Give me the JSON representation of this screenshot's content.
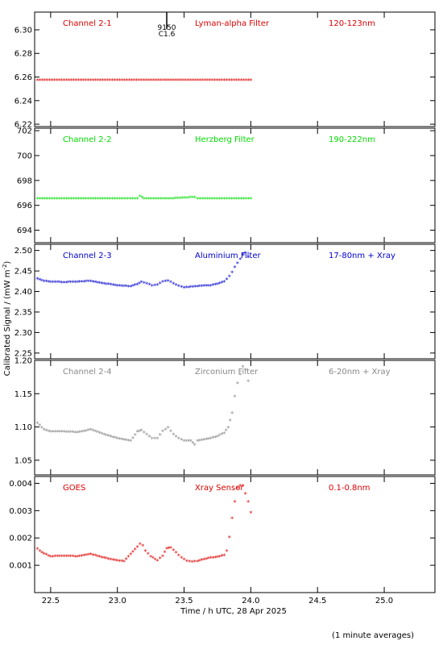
{
  "figure": {
    "ylabel_main": "Calibrated Signal / (mW m",
    "ylabel_exp": "-2",
    "ylabel_close": ")",
    "xlabel": "Time / h UTC, 28 Apr 2025",
    "footnote": "(1 minute averages)",
    "event_marker": {
      "x": 23.37,
      "label_top": "9150",
      "label_bottom": "C1.6"
    },
    "x_ticks": [
      {
        "v": 22.5,
        "label": "22.5"
      },
      {
        "v": 23.0,
        "label": "23.0"
      },
      {
        "v": 23.5,
        "label": "23.5"
      },
      {
        "v": 24.0,
        "label": "24.0"
      },
      {
        "v": 24.5,
        "label": "24.5"
      },
      {
        "v": 25.0,
        "label": "25.0"
      }
    ]
  },
  "chart_data": [
    {
      "type": "scatter",
      "channel": "Channel 2-1",
      "filter": "Lyman-alpha Filter",
      "band": "120-123nm",
      "color": "#dd0000",
      "xlim": [
        22.38,
        25.38
      ],
      "ylim": [
        6.218,
        6.315
      ],
      "yticks": [
        "6.22",
        "6.24",
        "6.26",
        "6.28",
        "6.30"
      ],
      "series": [
        {
          "x": [
            22.4,
            22.6,
            22.8,
            23.0,
            23.2,
            23.4,
            23.6,
            23.8,
            24.0
          ],
          "y": [
            6.257,
            6.257,
            6.257,
            6.257,
            6.257,
            6.257,
            6.257,
            6.257,
            6.257
          ]
        }
      ]
    },
    {
      "type": "scatter",
      "channel": "Channel 2-2",
      "filter": "Herzberg Filter",
      "band": "190-222nm",
      "color": "#00dd00",
      "xlim": [
        22.38,
        25.38
      ],
      "ylim": [
        693.0,
        702.2
      ],
      "yticks": [
        "694",
        "696",
        "698",
        "700",
        "702"
      ],
      "series": [
        {
          "x": [
            22.4,
            22.6,
            22.8,
            23.0,
            23.15,
            23.17,
            23.2,
            23.4,
            23.58,
            23.6,
            23.8,
            24.0
          ],
          "y": [
            696.5,
            696.5,
            696.5,
            696.5,
            696.5,
            696.7,
            696.5,
            696.5,
            696.6,
            696.5,
            696.5,
            696.5
          ]
        }
      ]
    },
    {
      "type": "scatter",
      "channel": "Channel 2-3",
      "filter": "Aluminium Filter",
      "band": "17-80nm + Xray",
      "color": "#0000cc",
      "xlim": [
        22.38,
        25.38
      ],
      "ylim": [
        2.236,
        2.515
      ],
      "yticks": [
        "2.25",
        "2.30",
        "2.35",
        "2.40",
        "2.45",
        "2.50"
      ],
      "series": [
        {
          "x": [
            22.4,
            22.45,
            22.5,
            22.6,
            22.7,
            22.8,
            22.9,
            23.0,
            23.1,
            23.15,
            23.18,
            23.22,
            23.26,
            23.3,
            23.34,
            23.38,
            23.42,
            23.46,
            23.5,
            23.55,
            23.6,
            23.65,
            23.7,
            23.75,
            23.8,
            23.84,
            23.86,
            23.88,
            23.9,
            23.92,
            23.94,
            23.96,
            23.98
          ],
          "y": [
            2.43,
            2.424,
            2.422,
            2.421,
            2.422,
            2.424,
            2.418,
            2.413,
            2.411,
            2.416,
            2.422,
            2.418,
            2.413,
            2.415,
            2.423,
            2.425,
            2.418,
            2.412,
            2.408,
            2.41,
            2.411,
            2.413,
            2.413,
            2.417,
            2.423,
            2.435,
            2.445,
            2.458,
            2.468,
            2.478,
            2.488,
            2.492,
            2.483
          ]
        }
      ]
    },
    {
      "type": "scatter",
      "channel": "Channel 2-4",
      "filter": "Zirconium Filter",
      "band": "6-20nm + Xray",
      "color": "#888888",
      "xlim": [
        22.38,
        25.38
      ],
      "ylim": [
        1.028,
        1.2
      ],
      "yticks": [
        "1.05",
        "1.10",
        "1.15",
        "1.20"
      ],
      "series": [
        {
          "x": [
            22.4,
            22.45,
            22.5,
            22.6,
            22.7,
            22.8,
            22.9,
            23.0,
            23.1,
            23.15,
            23.18,
            23.22,
            23.26,
            23.3,
            23.34,
            23.38,
            23.42,
            23.46,
            23.5,
            23.55,
            23.58,
            23.6,
            23.65,
            23.7,
            23.75,
            23.8,
            23.83,
            23.86,
            23.88,
            23.9,
            23.92,
            23.94,
            23.96,
            23.98
          ],
          "y": [
            1.105,
            1.095,
            1.092,
            1.092,
            1.091,
            1.095,
            1.088,
            1.082,
            1.078,
            1.092,
            1.094,
            1.088,
            1.082,
            1.082,
            1.093,
            1.098,
            1.088,
            1.082,
            1.078,
            1.078,
            1.072,
            1.078,
            1.08,
            1.082,
            1.085,
            1.09,
            1.098,
            1.12,
            1.145,
            1.165,
            1.178,
            1.19,
            1.185,
            1.168
          ]
        }
      ]
    },
    {
      "type": "scatter",
      "channel": "GOES",
      "filter": "Xray Sensor",
      "band": "0.1-0.8nm",
      "color": "#dd0000",
      "xlim": [
        22.38,
        25.38
      ],
      "ylim": [
        0.0,
        0.00425
      ],
      "yticks": [
        "0.001",
        "0.002",
        "0.003",
        "0.004"
      ],
      "series": [
        {
          "x": [
            22.4,
            22.42,
            22.45,
            22.5,
            22.6,
            22.7,
            22.8,
            22.9,
            23.0,
            23.05,
            23.15,
            23.17,
            23.19,
            23.21,
            23.25,
            23.3,
            23.34,
            23.37,
            23.4,
            23.44,
            23.48,
            23.52,
            23.56,
            23.6,
            23.65,
            23.7,
            23.75,
            23.8,
            23.82,
            23.84,
            23.86,
            23.88,
            23.9,
            23.92,
            23.94,
            23.96,
            23.98,
            24.0
          ],
          "y": [
            0.00158,
            0.0015,
            0.0014,
            0.0013,
            0.00132,
            0.0013,
            0.00138,
            0.00125,
            0.00115,
            0.00112,
            0.00165,
            0.00175,
            0.0017,
            0.0015,
            0.0013,
            0.00115,
            0.00132,
            0.0016,
            0.00162,
            0.00145,
            0.00125,
            0.00113,
            0.00111,
            0.00112,
            0.0012,
            0.00125,
            0.00128,
            0.00135,
            0.0015,
            0.002,
            0.0027,
            0.0033,
            0.0038,
            0.0039,
            0.0039,
            0.0036,
            0.0033,
            0.0029
          ]
        }
      ]
    }
  ]
}
